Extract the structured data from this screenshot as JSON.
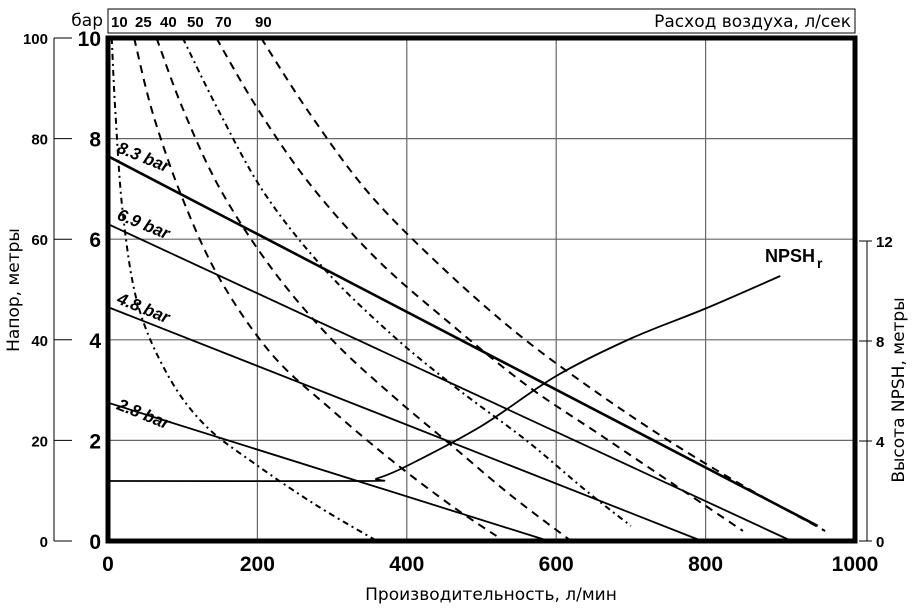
{
  "chart_data": {
    "type": "line",
    "title": "",
    "xlabel": "Производительность, л/мин",
    "ylabel_left_outer": "Напор, метры",
    "ylabel_left_inner_unit": "бар",
    "ylabel_right": "Высота NPSH, метры",
    "top_axis_label": "Расход воздуха, л/сек",
    "xlim": [
      0,
      1000
    ],
    "ylim_bar": [
      0,
      10
    ],
    "ylim_m": [
      0,
      100
    ],
    "ylim_npsh": [
      0,
      12
    ],
    "x_ticks": [
      "0",
      "200",
      "400",
      "600",
      "800",
      "1000"
    ],
    "y_ticks_bar": [
      "0",
      "2",
      "4",
      "6",
      "8",
      "10"
    ],
    "y_ticks_m": [
      "0",
      "20",
      "40",
      "60",
      "80",
      "100"
    ],
    "y_ticks_npsh": [
      "0",
      "4",
      "8",
      "12"
    ],
    "air_ticks": [
      "10",
      "25",
      "40",
      "50",
      "70",
      "90"
    ],
    "grid": true,
    "series": [
      {
        "name": "8.3 bar",
        "style": "solid-thick",
        "x": [
          0,
          950
        ],
        "y_bar": [
          7.65,
          0.3
        ]
      },
      {
        "name": "6.9 bar",
        "style": "solid",
        "x": [
          0,
          915
        ],
        "y_bar": [
          6.3,
          0
        ]
      },
      {
        "name": "4.8 bar",
        "style": "solid",
        "x": [
          0,
          795
        ],
        "y_bar": [
          4.65,
          0
        ]
      },
      {
        "name": "2.8 bar",
        "style": "solid",
        "x": [
          0,
          590
        ],
        "y_bar": [
          2.75,
          0
        ]
      },
      {
        "name": "NPSHr",
        "style": "solid",
        "axis": "right",
        "x": [
          0,
          340,
          360,
          400,
          500,
          600,
          700,
          800,
          900
        ],
        "y_npsh": [
          2.4,
          2.4,
          2.5,
          3.0,
          4.6,
          6.6,
          8.1,
          9.3,
          10.6
        ]
      },
      {
        "name": "Air 10 l/s",
        "style": "dash-dot",
        "x": [
          5,
          10,
          20,
          40,
          80,
          130,
          200,
          280,
          360
        ],
        "y_bar": [
          10,
          8.5,
          6.5,
          4.7,
          3.3,
          2.3,
          1.5,
          0.7,
          0
        ]
      },
      {
        "name": "Air 25 l/s",
        "style": "dashed",
        "x": [
          35,
          60,
          100,
          150,
          220,
          300,
          380,
          460,
          520
        ],
        "y_bar": [
          10,
          8.5,
          6.8,
          5.2,
          3.7,
          2.6,
          1.6,
          0.7,
          0.1
        ]
      },
      {
        "name": "Air 40 l/s",
        "style": "dashed",
        "x": [
          65,
          100,
          150,
          220,
          300,
          380,
          460,
          540,
          620
        ],
        "y_bar": [
          10,
          8.6,
          7.0,
          5.4,
          4.0,
          2.9,
          1.9,
          0.9,
          0
        ]
      },
      {
        "name": "Air 50 l/s",
        "style": "dash-dot",
        "x": [
          100,
          150,
          210,
          290,
          380,
          470,
          560,
          640,
          700
        ],
        "y_bar": [
          10,
          8.5,
          6.9,
          5.4,
          4.1,
          3.0,
          2.0,
          1.0,
          0.3
        ]
      },
      {
        "name": "Air 70 l/s",
        "style": "dashed",
        "x": [
          145,
          200,
          270,
          360,
          460,
          560,
          660,
          760,
          850
        ],
        "y_bar": [
          10,
          8.6,
          7.1,
          5.6,
          4.3,
          3.1,
          2.1,
          1.1,
          0.2
        ]
      },
      {
        "name": "Air 90 l/s",
        "style": "dashed",
        "x": [
          205,
          270,
          350,
          450,
          550,
          650,
          750,
          850,
          960
        ],
        "y_bar": [
          10,
          8.5,
          6.9,
          5.4,
          4.1,
          3.0,
          2.0,
          1.1,
          0.2
        ]
      }
    ]
  },
  "labels": {
    "bar_unit": "бар",
    "air_axis": "Расход воздуха, л/сек",
    "x_axis": "Производительность, л/мин",
    "y_axis_left": "Напор, метры",
    "y_axis_right": "Высота NPSH, метры",
    "npsh_prefix": "NPSH",
    "npsh_sub": "r",
    "curve_83": "8.3 bar",
    "curve_69": "6.9 bar",
    "curve_48": "4.8 bar",
    "curve_28": "2.8 bar"
  }
}
